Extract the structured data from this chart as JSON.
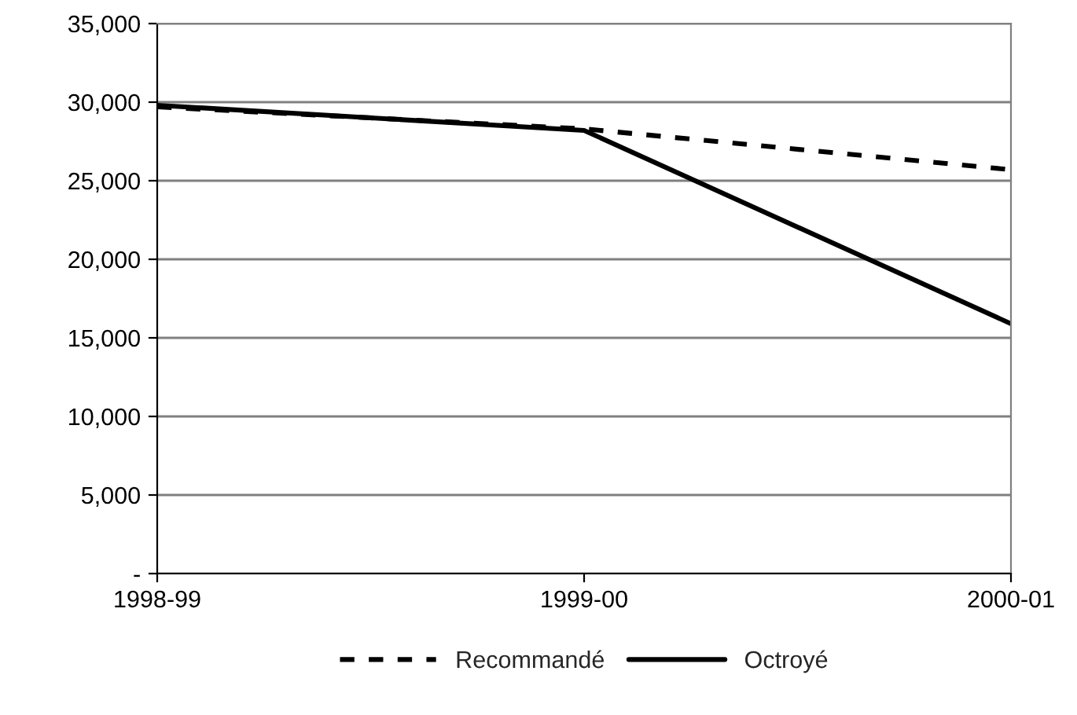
{
  "chart_data": {
    "type": "line",
    "categories": [
      "1998-99",
      "1999-00",
      "2000-01"
    ],
    "series": [
      {
        "name": "Recommandé",
        "color": "#000000",
        "line_style": "dashed",
        "values": [
          29700,
          28300,
          25700
        ]
      },
      {
        "name": "Octroyé",
        "color": "#000000",
        "line_style": "solid",
        "values": [
          29800,
          28200,
          15900
        ]
      }
    ],
    "ylim": [
      0,
      35000
    ],
    "yticks": [
      {
        "value": 0,
        "label": "-"
      },
      {
        "value": 5000,
        "label": "5,000"
      },
      {
        "value": 10000,
        "label": "10,000"
      },
      {
        "value": 15000,
        "label": "15,000"
      },
      {
        "value": 20000,
        "label": "20,000"
      },
      {
        "value": 25000,
        "label": "25,000"
      },
      {
        "value": 30000,
        "label": "30,000"
      },
      {
        "value": 35000,
        "label": "35,000"
      }
    ],
    "grid": "y",
    "legend": "bottom",
    "marker": "none"
  }
}
